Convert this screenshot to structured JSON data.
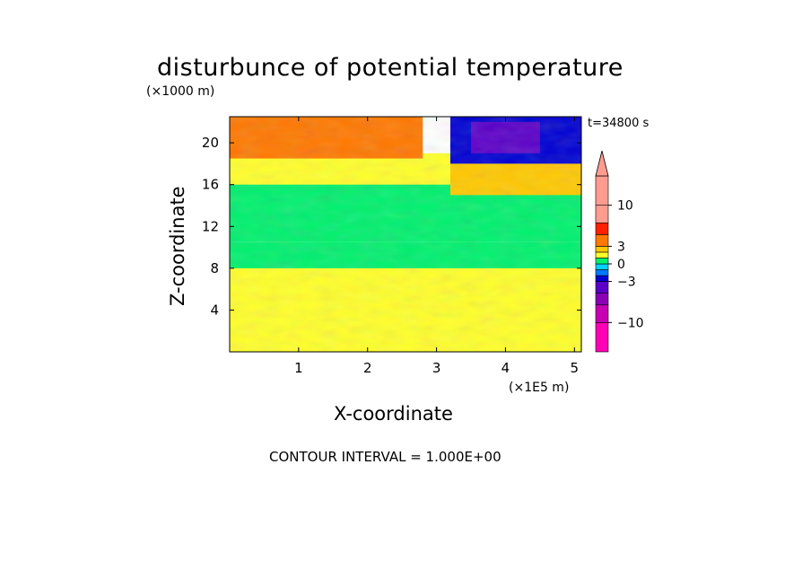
{
  "chart_data": {
    "type": "heatmap",
    "title": "disturbunce of potential temperature",
    "xlabel": "X-coordinate",
    "ylabel": "Z-coordinate",
    "x_unit_label": "(×1E5 m)",
    "y_unit_label": "(×1000 m)",
    "annotation_time": "t=34800 s",
    "footer": "CONTOUR INTERVAL = 1.000E+00",
    "xlim": [
      0,
      5.1
    ],
    "ylim": [
      0,
      22.5
    ],
    "x_ticks": [
      1,
      2,
      3,
      4,
      5
    ],
    "x_tick_labels": [
      "1",
      "2",
      "3",
      "4",
      "5"
    ],
    "y_ticks": [
      4,
      8,
      12,
      16,
      20
    ],
    "y_tick_labels": [
      "4",
      "8",
      "12",
      "16",
      "20"
    ],
    "colorbar": {
      "labeled_ticks": [
        10,
        3,
        0,
        -3,
        -10
      ],
      "labels": [
        "10",
        "3",
        "0",
        "−3",
        "−10"
      ],
      "levels": [
        {
          "range": [
            -15,
            -10
          ],
          "color": "#ff00b4"
        },
        {
          "range": [
            -10,
            -7
          ],
          "color": "#c800b4"
        },
        {
          "range": [
            -7,
            -5
          ],
          "color": "#8a00b4"
        },
        {
          "range": [
            -5,
            -3
          ],
          "color": "#5a00c8"
        },
        {
          "range": [
            -3,
            -2
          ],
          "color": "#0000d2"
        },
        {
          "range": [
            -2,
            -1
          ],
          "color": "#0078ff"
        },
        {
          "range": [
            -1,
            0
          ],
          "color": "#00d2ff"
        },
        {
          "range": [
            0,
            1
          ],
          "color": "#00f06e"
        },
        {
          "range": [
            1,
            2
          ],
          "color": "#ffff2a"
        },
        {
          "range": [
            2,
            3
          ],
          "color": "#ffc800"
        },
        {
          "range": [
            3,
            5
          ],
          "color": "#ff7800"
        },
        {
          "range": [
            5,
            7
          ],
          "color": "#ff2000"
        },
        {
          "range": [
            7,
            10
          ],
          "color": "#ff9c90"
        },
        {
          "range": [
            10,
            15
          ],
          "color": "#ff9c90"
        }
      ],
      "extend_top_color": "#ff9c90"
    },
    "regions": [
      {
        "x": [
          0.0,
          5.1
        ],
        "z": [
          0.0,
          9.0
        ],
        "value": 1.5
      },
      {
        "x": [
          0.0,
          5.1
        ],
        "z": [
          8.0,
          10.5
        ],
        "value": 0.5
      },
      {
        "x": [
          0.0,
          5.1
        ],
        "z": [
          10.5,
          17.0
        ],
        "value": 0.5
      },
      {
        "x": [
          0.0,
          3.2
        ],
        "z": [
          16.0,
          19.0
        ],
        "value": 1.5
      },
      {
        "x": [
          0.0,
          2.8
        ],
        "z": [
          18.5,
          22.5
        ],
        "value": 3.5
      },
      {
        "x": [
          3.2,
          5.1
        ],
        "z": [
          15.0,
          18.0
        ],
        "value": 2.5
      },
      {
        "x": [
          3.2,
          5.1
        ],
        "z": [
          18.0,
          22.5
        ],
        "value": -2.5
      },
      {
        "x": [
          3.5,
          4.5
        ],
        "z": [
          19.0,
          22.0
        ],
        "value": -4
      }
    ]
  }
}
